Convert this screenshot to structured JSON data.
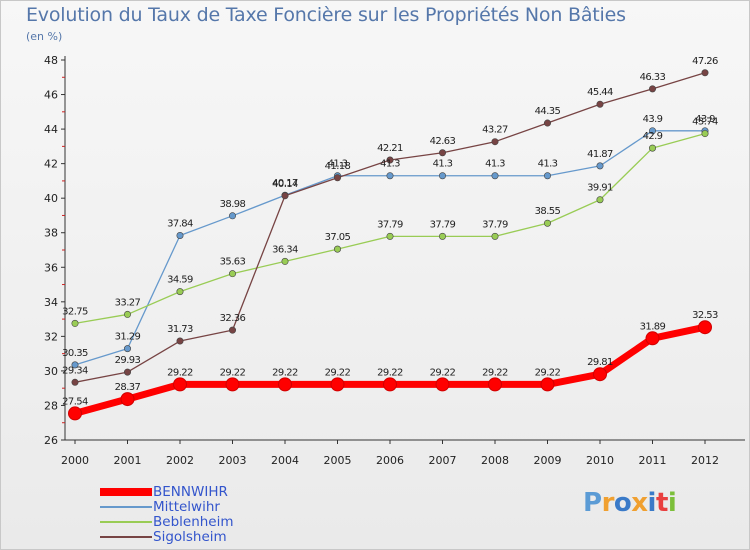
{
  "chart_data": {
    "type": "line",
    "title": "Evolution du Taux de Taxe Foncière sur les Propriétés Non Bâties",
    "ylabel": "(en %)",
    "xlabel": "",
    "categories": [
      "2000",
      "2001",
      "2002",
      "2003",
      "2004",
      "2005",
      "2006",
      "2007",
      "2008",
      "2009",
      "2010",
      "2011",
      "2012"
    ],
    "ylim": [
      26,
      48
    ],
    "yticks": [
      26,
      28,
      30,
      32,
      34,
      36,
      38,
      40,
      42,
      44,
      46,
      48
    ],
    "grid": false,
    "legend_position": "bottom-left",
    "series": [
      {
        "name": "BENNWIHR",
        "color": "#ff0000",
        "values": [
          27.54,
          28.37,
          29.22,
          29.22,
          29.22,
          29.22,
          29.22,
          29.22,
          29.22,
          29.22,
          29.81,
          31.89,
          32.53
        ],
        "labels": [
          "27.54",
          "28.37",
          "29.22",
          "29.22",
          "29.22",
          "29.22",
          "29.22",
          "29.22",
          "29.22",
          "29.22",
          "29.81",
          "31.89",
          "32.53"
        ]
      },
      {
        "name": "Mittelwihr",
        "color": "#6699cc",
        "values": [
          30.35,
          31.29,
          37.84,
          38.98,
          40.17,
          41.3,
          41.3,
          41.3,
          41.3,
          41.3,
          41.87,
          43.9,
          43.9
        ],
        "labels": [
          "30.35",
          "31.29",
          "37.84",
          "38.98",
          "40.17",
          "41.3",
          "41.3",
          "41.3",
          "41.3",
          "41.3",
          "41.87",
          "43.9",
          "43.9"
        ]
      },
      {
        "name": "Beblenheim",
        "color": "#99cc55",
        "values": [
          32.75,
          33.27,
          34.59,
          35.63,
          36.34,
          37.05,
          37.79,
          37.79,
          37.79,
          38.55,
          39.91,
          42.9,
          43.74
        ],
        "labels": [
          "32.75",
          "33.27",
          "34.59",
          "35.63",
          "36.34",
          "37.05",
          "37.79",
          "37.79",
          "37.79",
          "38.55",
          "39.91",
          "42.9",
          "43.74"
        ]
      },
      {
        "name": "Sigolsheim",
        "color": "#774444",
        "values": [
          29.34,
          29.93,
          31.73,
          32.36,
          40.14,
          41.18,
          42.21,
          42.63,
          43.27,
          44.35,
          45.44,
          46.33,
          47.26
        ],
        "labels": [
          "29.34",
          "29.93",
          "31.73",
          "32.36",
          "40.14",
          "41.18",
          "42.21",
          "42.63",
          "43.27",
          "44.35",
          "45.44",
          "46.33",
          "47.26"
        ]
      }
    ]
  },
  "logo": {
    "text": "Proxiti",
    "colors": [
      "#5b9bd5",
      "#f0a030",
      "#3a7ac8",
      "#f0a030",
      "#3a7ac8",
      "#e94040",
      "#7cbf3a"
    ]
  }
}
